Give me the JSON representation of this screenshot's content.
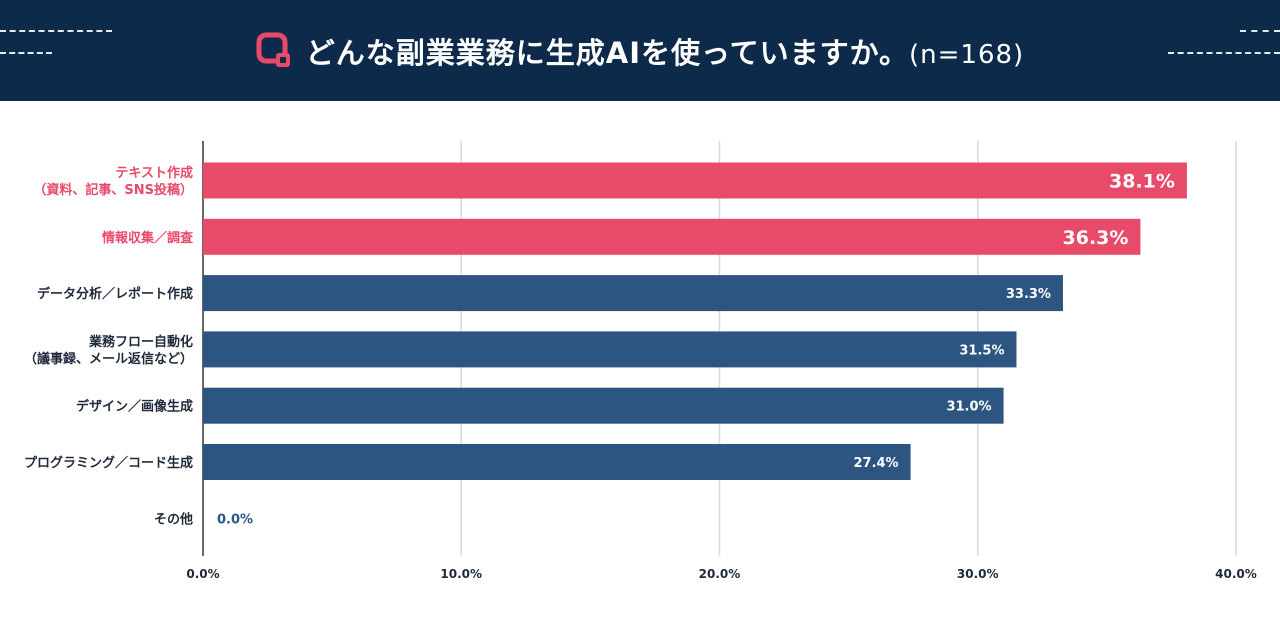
{
  "header": {
    "title": "どんな副業業務に生成AIを使っていますか。",
    "sample": "(n=168)",
    "logo_icon": "q-logo-icon"
  },
  "colors": {
    "header_bg": "#0e2a4b",
    "highlight": "#e84a6a",
    "bar": "#2d5581",
    "grid": "#d9d9d9",
    "axis": "#333333"
  },
  "chart_data": {
    "type": "bar",
    "orientation": "horizontal",
    "title": "どんな副業業務に生成AIを使っていますか。(n=168)",
    "xlabel": "",
    "ylabel": "",
    "xlim": [
      0,
      40
    ],
    "x_ticks": [
      "0.0%",
      "10.0%",
      "20.0%",
      "30.0%",
      "40.0%"
    ],
    "grid": "vertical",
    "categories": [
      [
        "テキスト作成",
        "（資料、記事、SNS投稿）"
      ],
      [
        "情報収集／調査"
      ],
      [
        "データ分析／レポート作成"
      ],
      [
        "業務フロー自動化",
        "（議事録、メール返信など）"
      ],
      [
        "デザイン／画像生成"
      ],
      [
        "プログラミング／コード生成"
      ],
      [
        "その他"
      ]
    ],
    "values": [
      38.1,
      36.3,
      33.3,
      31.5,
      31.0,
      27.4,
      0.0
    ],
    "value_labels": [
      "38.1%",
      "36.3%",
      "33.3%",
      "31.5%",
      "31.0%",
      "27.4%",
      "0.0%"
    ],
    "highlighted": [
      true,
      true,
      false,
      false,
      false,
      false,
      false
    ]
  }
}
